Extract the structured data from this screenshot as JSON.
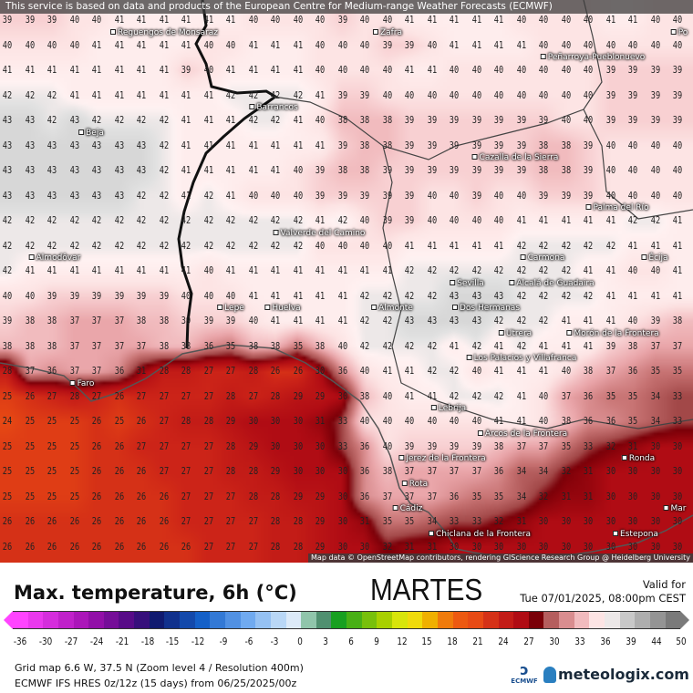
{
  "banner": "This service is based on data and products of the European Centre for Medium-range Weather Forecasts (ECMWF)",
  "attribution": "Map data © OpenStreetMap contributors, rendering GIScience Research Group @ Heidelberg University",
  "title": "Max. temperature, 6h (°C)",
  "day": "MARTES",
  "valid_label": "Valid for",
  "valid_time": "Tue 07/01/2025, 08:00pm CEST",
  "info_line1": "Grid map 6.6 W, 37.5 N (Zoom level 4 / Resolution 400m)",
  "info_line2": "ECMWF IFS HRES 0z/12z (15 days) from  06/25/2025/00z",
  "ecmwf_logo": "ECMWF",
  "brand": "meteologix.com",
  "legend_ticks": [
    "-36",
    "-30",
    "-27",
    "-24",
    "-21",
    "-18",
    "-15",
    "-12",
    "-9",
    "-6",
    "-3",
    "0",
    "3",
    "6",
    "9",
    "12",
    "15",
    "18",
    "21",
    "24",
    "27",
    "30",
    "33",
    "36",
    "39",
    "44",
    "50"
  ],
  "color_scale": [
    [
      -36,
      "#ff44ff"
    ],
    [
      -27,
      "#a010b0"
    ],
    [
      -21,
      "#4a0a80"
    ],
    [
      -18,
      "#101a70"
    ],
    [
      -12,
      "#1460c8"
    ],
    [
      -6,
      "#70aaf0"
    ],
    [
      -3,
      "#a8cdf5"
    ],
    [
      0,
      "#dceaf8"
    ],
    [
      1,
      "#b0e0c8"
    ],
    [
      4,
      "#509070"
    ],
    [
      6,
      "#18a020"
    ],
    [
      12,
      "#a8d000"
    ],
    [
      15,
      "#f0f010"
    ],
    [
      18,
      "#f0b000"
    ],
    [
      21,
      "#f06010"
    ],
    [
      24,
      "#e84a14"
    ],
    [
      27,
      "#cc2418"
    ],
    [
      30,
      "#b00c14"
    ],
    [
      32,
      "#7a0008"
    ],
    [
      33,
      "#a24848"
    ],
    [
      35,
      "#c87474"
    ],
    [
      37,
      "#eaa6aa"
    ],
    [
      39,
      "#f8d0d2"
    ],
    [
      40,
      "#fde4e4"
    ],
    [
      41.5,
      "#fff2f2"
    ],
    [
      42.3,
      "#e2e2e2"
    ],
    [
      44,
      "#c8c8c8"
    ],
    [
      50,
      "#7a7a7a"
    ]
  ],
  "places": [
    "Reguengos de Monsaraz",
    "Zafra",
    "Peñarroya-Pueblonuevo",
    "Barrancos",
    "Beja",
    "Cazalla de la Sierra",
    "Palma del Río",
    "Valverde del Camino",
    "Écija",
    "Almodôvar",
    "Carmona",
    "Sevilla",
    "Alcalá de Guadaira",
    "Dos Hermanas",
    "Lepe",
    "Huelva",
    "Almonte",
    "Utrera",
    "Morón de la Frontera",
    "Los Palacios y Villafranca",
    "Faro",
    "Lebrija",
    "Arcos de la Frontera",
    "Ronda",
    "Jerez de la Frontera",
    "Rota",
    "Cádiz",
    "Chiclana de la Frontera",
    "Estepona",
    "Mar",
    "Po"
  ],
  "grid": [
    [
      39,
      39,
      39,
      40,
      40,
      41,
      41,
      41,
      41,
      41,
      41,
      40,
      40,
      40,
      40,
      39,
      40,
      40,
      41,
      41,
      41,
      41,
      41,
      40,
      40,
      40,
      40,
      41,
      41,
      40,
      40
    ],
    [
      40,
      40,
      40,
      40,
      41,
      41,
      41,
      41,
      41,
      40,
      40,
      41,
      41,
      41,
      40,
      40,
      40,
      39,
      39,
      40,
      41,
      41,
      41,
      41,
      40,
      40,
      40,
      40,
      40,
      40,
      40
    ],
    [
      41,
      41,
      41,
      41,
      41,
      41,
      41,
      41,
      39,
      40,
      41,
      41,
      41,
      41,
      40,
      40,
      40,
      40,
      41,
      41,
      40,
      40,
      40,
      40,
      40,
      40,
      40,
      39,
      39,
      39,
      39
    ],
    [
      42,
      42,
      42,
      41,
      41,
      41,
      41,
      41,
      41,
      41,
      42,
      42,
      42,
      42,
      41,
      39,
      39,
      40,
      40,
      40,
      40,
      40,
      40,
      40,
      40,
      40,
      40,
      39,
      39,
      39,
      39
    ],
    [
      43,
      43,
      42,
      43,
      42,
      42,
      42,
      42,
      41,
      41,
      41,
      42,
      42,
      41,
      40,
      38,
      38,
      38,
      39,
      39,
      39,
      39,
      39,
      39,
      39,
      40,
      40,
      39,
      39,
      39,
      39
    ],
    [
      43,
      43,
      43,
      43,
      43,
      43,
      43,
      42,
      41,
      41,
      41,
      41,
      41,
      41,
      41,
      39,
      38,
      38,
      39,
      39,
      39,
      39,
      39,
      39,
      38,
      38,
      39,
      40,
      40,
      40,
      40
    ],
    [
      43,
      43,
      43,
      43,
      43,
      43,
      43,
      42,
      41,
      41,
      41,
      41,
      41,
      40,
      39,
      38,
      38,
      39,
      39,
      39,
      39,
      39,
      39,
      39,
      38,
      38,
      39,
      40,
      40,
      40,
      40
    ],
    [
      43,
      43,
      43,
      43,
      43,
      43,
      42,
      42,
      41,
      42,
      41,
      40,
      40,
      40,
      39,
      39,
      39,
      39,
      39,
      40,
      40,
      39,
      40,
      40,
      39,
      39,
      39,
      40,
      40,
      40,
      40
    ],
    [
      42,
      42,
      42,
      42,
      42,
      42,
      42,
      42,
      42,
      42,
      42,
      42,
      42,
      42,
      41,
      42,
      40,
      39,
      39,
      40,
      40,
      40,
      40,
      41,
      41,
      41,
      41,
      41,
      42,
      42,
      41
    ],
    [
      42,
      42,
      42,
      42,
      42,
      42,
      42,
      42,
      42,
      42,
      42,
      42,
      42,
      42,
      40,
      40,
      40,
      40,
      41,
      41,
      41,
      41,
      41,
      42,
      42,
      42,
      42,
      42,
      41,
      41,
      41
    ],
    [
      42,
      41,
      41,
      41,
      41,
      41,
      41,
      41,
      41,
      40,
      41,
      41,
      41,
      41,
      41,
      41,
      41,
      41,
      42,
      42,
      42,
      42,
      42,
      42,
      42,
      42,
      41,
      41,
      40,
      40,
      41
    ],
    [
      40,
      40,
      39,
      39,
      39,
      39,
      39,
      39,
      40,
      40,
      40,
      41,
      41,
      41,
      41,
      41,
      42,
      42,
      42,
      42,
      43,
      43,
      43,
      42,
      42,
      42,
      42,
      41,
      41,
      41,
      41
    ],
    [
      39,
      38,
      38,
      37,
      37,
      37,
      38,
      38,
      39,
      39,
      39,
      40,
      41,
      41,
      41,
      41,
      42,
      42,
      43,
      43,
      43,
      43,
      42,
      42,
      42,
      41,
      41,
      41,
      40,
      39,
      38
    ],
    [
      38,
      38,
      38,
      37,
      37,
      37,
      37,
      38,
      38,
      36,
      35,
      38,
      38,
      35,
      38,
      40,
      42,
      42,
      42,
      42,
      41,
      42,
      41,
      42,
      41,
      41,
      41,
      39,
      38,
      37,
      37
    ],
    [
      28,
      37,
      36,
      37,
      37,
      36,
      31,
      28,
      28,
      27,
      27,
      28,
      26,
      26,
      30,
      36,
      40,
      41,
      41,
      42,
      42,
      40,
      41,
      41,
      41,
      40,
      38,
      37,
      36,
      35,
      35
    ],
    [
      25,
      26,
      27,
      28,
      27,
      26,
      27,
      27,
      27,
      27,
      28,
      27,
      28,
      29,
      29,
      30,
      38,
      40,
      41,
      41,
      42,
      42,
      42,
      41,
      40,
      37,
      36,
      35,
      35,
      34,
      33
    ],
    [
      24,
      25,
      25,
      25,
      26,
      25,
      26,
      27,
      28,
      28,
      29,
      30,
      30,
      30,
      31,
      33,
      40,
      40,
      40,
      40,
      40,
      40,
      41,
      41,
      40,
      38,
      36,
      36,
      35,
      34,
      33
    ],
    [
      25,
      25,
      25,
      25,
      26,
      26,
      27,
      27,
      27,
      27,
      28,
      29,
      30,
      30,
      30,
      33,
      36,
      40,
      39,
      39,
      39,
      39,
      38,
      37,
      37,
      35,
      33,
      32,
      31,
      30,
      30
    ],
    [
      25,
      25,
      25,
      25,
      26,
      26,
      26,
      27,
      27,
      27,
      28,
      28,
      29,
      30,
      30,
      30,
      36,
      38,
      37,
      37,
      37,
      37,
      36,
      34,
      34,
      32,
      31,
      30,
      30,
      30,
      30
    ],
    [
      25,
      25,
      25,
      25,
      26,
      26,
      26,
      26,
      27,
      27,
      27,
      28,
      28,
      29,
      29,
      30,
      36,
      37,
      37,
      37,
      36,
      35,
      35,
      34,
      32,
      31,
      31,
      30,
      30,
      30,
      30
    ],
    [
      26,
      26,
      26,
      26,
      26,
      26,
      26,
      26,
      27,
      27,
      27,
      27,
      28,
      28,
      29,
      30,
      31,
      35,
      35,
      34,
      33,
      33,
      32,
      31,
      30,
      30,
      30,
      30,
      30,
      30,
      30
    ],
    [
      26,
      26,
      26,
      26,
      26,
      26,
      26,
      26,
      26,
      27,
      27,
      27,
      28,
      28,
      29,
      30,
      30,
      32,
      31,
      31,
      30,
      30,
      30,
      30,
      30,
      30,
      30,
      30,
      30,
      30,
      30
    ]
  ]
}
